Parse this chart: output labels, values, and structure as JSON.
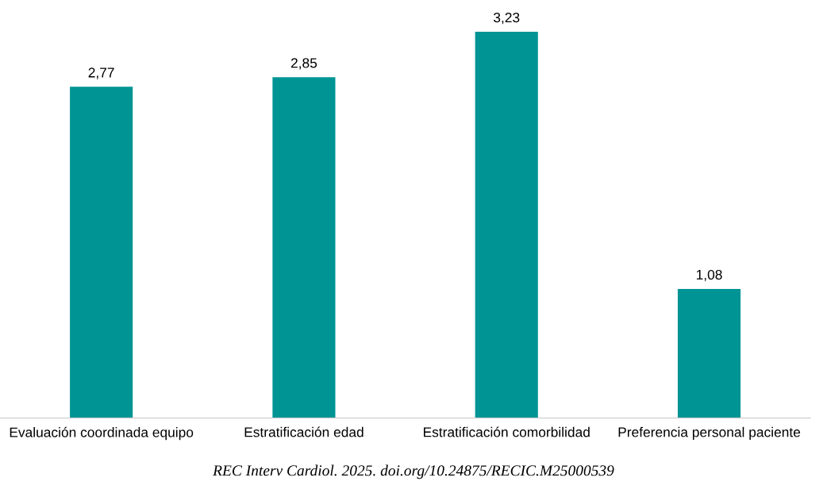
{
  "chart_data": {
    "type": "bar",
    "categories": [
      "Evaluación coordinada equipo",
      "Estratificación edad",
      "Estratificación comorbilidad",
      "Preferencia personal paciente"
    ],
    "values": [
      2.77,
      2.85,
      3.23,
      1.08
    ],
    "value_labels": [
      "2,77",
      "2,85",
      "3,23",
      "1,08"
    ],
    "color": "#009494",
    "grid": false,
    "legend": false,
    "tick_labels": "x",
    "annotations": [
      "REC Interv Cardiol. 2025. doi.org/10.24875/RECIC.M25000539"
    ]
  }
}
